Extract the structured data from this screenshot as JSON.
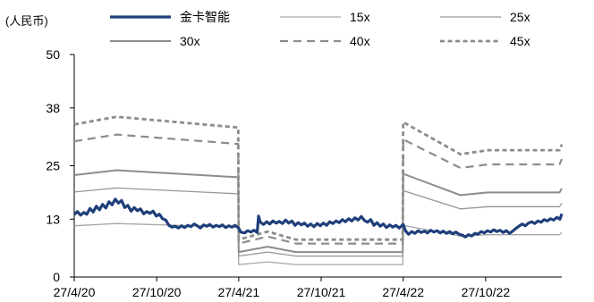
{
  "chart_data": {
    "type": "line",
    "title": "",
    "unit_label": "(人民币)",
    "xlabel": "",
    "ylabel": "",
    "ylim": [
      0,
      50
    ],
    "yticks": [
      0,
      13,
      25,
      38,
      50
    ],
    "x_range": [
      "2020-04-27",
      "2023-04-14"
    ],
    "xticks": [
      {
        "date": "2020-04-27",
        "label": "27/4/20"
      },
      {
        "date": "2020-10-27",
        "label": "27/10/20"
      },
      {
        "date": "2021-04-27",
        "label": "27/4/21"
      },
      {
        "date": "2021-10-27",
        "label": "27/10/21"
      },
      {
        "date": "2022-04-27",
        "label": "27/4/22"
      },
      {
        "date": "2022-10-27",
        "label": "27/10/22"
      }
    ],
    "grid": false,
    "legend": "top",
    "series": [
      {
        "name": "金卡智能",
        "color": "#1f3f7a",
        "style": "thick",
        "points": [
          [
            "2020-04-27",
            14.0
          ],
          [
            "2020-05-04",
            14.7
          ],
          [
            "2020-05-11",
            13.9
          ],
          [
            "2020-05-18",
            14.5
          ],
          [
            "2020-05-25",
            14.1
          ],
          [
            "2020-06-01",
            15.4
          ],
          [
            "2020-06-08",
            14.6
          ],
          [
            "2020-06-15",
            15.9
          ],
          [
            "2020-06-22",
            15.1
          ],
          [
            "2020-06-29",
            16.3
          ],
          [
            "2020-07-06",
            15.5
          ],
          [
            "2020-07-13",
            16.9
          ],
          [
            "2020-07-20",
            16.2
          ],
          [
            "2020-07-27",
            17.5
          ],
          [
            "2020-08-03",
            16.6
          ],
          [
            "2020-08-10",
            17.2
          ],
          [
            "2020-08-17",
            15.6
          ],
          [
            "2020-08-24",
            16.1
          ],
          [
            "2020-08-31",
            14.8
          ],
          [
            "2020-09-07",
            15.6
          ],
          [
            "2020-09-14",
            14.9
          ],
          [
            "2020-09-21",
            15.3
          ],
          [
            "2020-09-28",
            14.2
          ],
          [
            "2020-10-05",
            14.7
          ],
          [
            "2020-10-12",
            14.3
          ],
          [
            "2020-10-19",
            14.8
          ],
          [
            "2020-10-26",
            13.7
          ],
          [
            "2020-11-02",
            14.1
          ],
          [
            "2020-11-09",
            13.1
          ],
          [
            "2020-11-16",
            12.8
          ],
          [
            "2020-11-23",
            11.6
          ],
          [
            "2020-11-30",
            11.2
          ],
          [
            "2020-12-07",
            11.4
          ],
          [
            "2020-12-14",
            11.0
          ],
          [
            "2020-12-21",
            11.5
          ],
          [
            "2020-12-28",
            11.1
          ],
          [
            "2021-01-04",
            11.6
          ],
          [
            "2021-01-11",
            11.3
          ],
          [
            "2021-01-18",
            11.9
          ],
          [
            "2021-01-25",
            11.5
          ],
          [
            "2021-02-01",
            11.0
          ],
          [
            "2021-02-08",
            11.7
          ],
          [
            "2021-02-15",
            11.4
          ],
          [
            "2021-02-22",
            11.8
          ],
          [
            "2021-03-01",
            11.2
          ],
          [
            "2021-03-08",
            11.6
          ],
          [
            "2021-03-15",
            11.3
          ],
          [
            "2021-03-22",
            11.7
          ],
          [
            "2021-03-29",
            11.1
          ],
          [
            "2021-04-05",
            11.5
          ],
          [
            "2021-04-12",
            11.2
          ],
          [
            "2021-04-19",
            11.6
          ],
          [
            "2021-04-27",
            11.0
          ],
          [
            "2021-05-01",
            10.1
          ],
          [
            "2021-05-10",
            9.9
          ],
          [
            "2021-05-17",
            10.4
          ],
          [
            "2021-05-24",
            10.1
          ],
          [
            "2021-05-31",
            10.5
          ],
          [
            "2021-06-07",
            10.0
          ],
          [
            "2021-06-10",
            13.7
          ],
          [
            "2021-06-14",
            12.3
          ],
          [
            "2021-06-21",
            11.8
          ],
          [
            "2021-06-28",
            12.4
          ],
          [
            "2021-07-05",
            11.9
          ],
          [
            "2021-07-12",
            12.6
          ],
          [
            "2021-07-19",
            12.1
          ],
          [
            "2021-07-26",
            12.5
          ],
          [
            "2021-08-02",
            12.0
          ],
          [
            "2021-08-09",
            12.8
          ],
          [
            "2021-08-16",
            12.1
          ],
          [
            "2021-08-23",
            12.6
          ],
          [
            "2021-08-30",
            11.6
          ],
          [
            "2021-09-06",
            12.2
          ],
          [
            "2021-09-13",
            11.7
          ],
          [
            "2021-09-20",
            12.1
          ],
          [
            "2021-09-27",
            11.4
          ],
          [
            "2021-10-04",
            11.9
          ],
          [
            "2021-10-11",
            11.3
          ],
          [
            "2021-10-18",
            12.0
          ],
          [
            "2021-10-25",
            11.5
          ],
          [
            "2021-11-01",
            12.1
          ],
          [
            "2021-11-08",
            11.6
          ],
          [
            "2021-11-15",
            12.4
          ],
          [
            "2021-11-22",
            12.0
          ],
          [
            "2021-11-29",
            12.6
          ],
          [
            "2021-12-06",
            12.2
          ],
          [
            "2021-12-13",
            12.9
          ],
          [
            "2021-12-20",
            12.4
          ],
          [
            "2021-12-27",
            13.1
          ],
          [
            "2022-01-03",
            12.6
          ],
          [
            "2022-01-10",
            13.3
          ],
          [
            "2022-01-17",
            12.8
          ],
          [
            "2022-01-24",
            13.6
          ],
          [
            "2022-01-31",
            12.7
          ],
          [
            "2022-02-07",
            12.3
          ],
          [
            "2022-02-14",
            12.9
          ],
          [
            "2022-02-21",
            11.6
          ],
          [
            "2022-02-28",
            12.2
          ],
          [
            "2022-03-07",
            11.4
          ],
          [
            "2022-03-14",
            11.9
          ],
          [
            "2022-03-21",
            11.1
          ],
          [
            "2022-03-28",
            11.7
          ],
          [
            "2022-04-04",
            11.2
          ],
          [
            "2022-04-11",
            11.6
          ],
          [
            "2022-04-18",
            11.0
          ],
          [
            "2022-04-27",
            11.8
          ],
          [
            "2022-05-02",
            10.4
          ],
          [
            "2022-05-09",
            9.6
          ],
          [
            "2022-05-16",
            10.2
          ],
          [
            "2022-05-23",
            9.8
          ],
          [
            "2022-05-30",
            10.4
          ],
          [
            "2022-06-06",
            10.0
          ],
          [
            "2022-06-13",
            10.3
          ],
          [
            "2022-06-20",
            9.9
          ],
          [
            "2022-06-27",
            10.5
          ],
          [
            "2022-07-04",
            10.1
          ],
          [
            "2022-07-11",
            10.4
          ],
          [
            "2022-07-18",
            9.9
          ],
          [
            "2022-07-25",
            10.3
          ],
          [
            "2022-08-01",
            9.8
          ],
          [
            "2022-08-08",
            10.2
          ],
          [
            "2022-08-15",
            9.7
          ],
          [
            "2022-08-22",
            10.1
          ],
          [
            "2022-08-29",
            9.6
          ],
          [
            "2022-09-05",
            9.4
          ],
          [
            "2022-09-12",
            9.0
          ],
          [
            "2022-09-19",
            9.5
          ],
          [
            "2022-09-26",
            9.2
          ],
          [
            "2022-10-03",
            9.8
          ],
          [
            "2022-10-10",
            9.6
          ],
          [
            "2022-10-17",
            10.2
          ],
          [
            "2022-10-24",
            9.9
          ],
          [
            "2022-10-31",
            10.4
          ],
          [
            "2022-11-07",
            10.1
          ],
          [
            "2022-11-14",
            10.6
          ],
          [
            "2022-11-21",
            10.2
          ],
          [
            "2022-11-28",
            10.5
          ],
          [
            "2022-12-05",
            10.0
          ],
          [
            "2022-12-12",
            10.4
          ],
          [
            "2022-12-19",
            9.8
          ],
          [
            "2022-12-26",
            10.3
          ],
          [
            "2023-01-02",
            10.9
          ],
          [
            "2023-01-09",
            11.4
          ],
          [
            "2023-01-16",
            11.9
          ],
          [
            "2023-01-23",
            11.5
          ],
          [
            "2023-01-30",
            12.1
          ],
          [
            "2023-02-06",
            12.4
          ],
          [
            "2023-02-13",
            12.0
          ],
          [
            "2023-02-20",
            12.6
          ],
          [
            "2023-02-27",
            12.3
          ],
          [
            "2023-03-06",
            12.9
          ],
          [
            "2023-03-13",
            12.6
          ],
          [
            "2023-03-20",
            13.1
          ],
          [
            "2023-03-27",
            12.8
          ],
          [
            "2023-04-03",
            13.4
          ],
          [
            "2023-04-10",
            13.0
          ],
          [
            "2023-04-14",
            14.2
          ]
        ]
      },
      {
        "name": "15x",
        "color": "#a6a6a6",
        "style": "solid-thin",
        "points": [
          [
            "2020-04-27",
            11.5
          ],
          [
            "2020-07-30",
            12.0
          ],
          [
            "2021-04-26",
            11.2
          ],
          [
            "2021-04-27",
            2.8
          ],
          [
            "2021-06-30",
            3.4
          ],
          [
            "2021-09-01",
            2.8
          ],
          [
            "2022-04-26",
            2.8
          ],
          [
            "2022-04-27",
            11.6
          ],
          [
            "2022-09-01",
            9.2
          ],
          [
            "2022-11-01",
            9.5
          ],
          [
            "2023-04-09",
            9.5
          ],
          [
            "2023-04-14",
            10.0
          ]
        ]
      },
      {
        "name": "25x",
        "color": "#969696",
        "style": "solid-thin",
        "points": [
          [
            "2020-04-27",
            19.1
          ],
          [
            "2020-07-30",
            20.0
          ],
          [
            "2021-04-26",
            18.7
          ],
          [
            "2021-04-27",
            4.7
          ],
          [
            "2021-06-30",
            5.6
          ],
          [
            "2021-09-01",
            4.7
          ],
          [
            "2022-04-26",
            4.7
          ],
          [
            "2022-04-27",
            19.4
          ],
          [
            "2022-09-01",
            15.3
          ],
          [
            "2022-11-01",
            15.8
          ],
          [
            "2023-04-09",
            15.8
          ],
          [
            "2023-04-14",
            16.6
          ]
        ]
      },
      {
        "name": "30x",
        "color": "#8c8c8c",
        "style": "solid-mid",
        "points": [
          [
            "2020-04-27",
            22.9
          ],
          [
            "2020-07-30",
            24.0
          ],
          [
            "2021-04-26",
            22.4
          ],
          [
            "2021-04-27",
            5.6
          ],
          [
            "2021-06-30",
            6.8
          ],
          [
            "2021-09-01",
            5.6
          ],
          [
            "2022-04-26",
            5.6
          ],
          [
            "2022-04-27",
            23.2
          ],
          [
            "2022-09-01",
            18.4
          ],
          [
            "2022-11-01",
            19.0
          ],
          [
            "2023-04-09",
            19.0
          ],
          [
            "2023-04-14",
            19.9
          ]
        ]
      },
      {
        "name": "40x",
        "color": "#8c8c8c",
        "style": "dashed",
        "points": [
          [
            "2020-04-27",
            30.5
          ],
          [
            "2020-07-30",
            32.0
          ],
          [
            "2021-04-26",
            29.9
          ],
          [
            "2021-04-27",
            7.5
          ],
          [
            "2021-06-30",
            9.1
          ],
          [
            "2021-09-01",
            7.5
          ],
          [
            "2022-04-26",
            7.5
          ],
          [
            "2022-04-27",
            30.9
          ],
          [
            "2022-09-01",
            24.5
          ],
          [
            "2022-11-01",
            25.3
          ],
          [
            "2023-04-09",
            25.3
          ],
          [
            "2023-04-14",
            26.5
          ]
        ]
      },
      {
        "name": "45x",
        "color": "#8c8c8c",
        "style": "dotted",
        "points": [
          [
            "2020-04-27",
            34.3
          ],
          [
            "2020-07-30",
            36.0
          ],
          [
            "2021-04-26",
            33.6
          ],
          [
            "2021-04-27",
            8.4
          ],
          [
            "2021-06-30",
            10.2
          ],
          [
            "2021-09-01",
            8.4
          ],
          [
            "2022-04-26",
            8.4
          ],
          [
            "2022-04-27",
            34.8
          ],
          [
            "2022-09-01",
            27.6
          ],
          [
            "2022-11-01",
            28.5
          ],
          [
            "2023-04-09",
            28.5
          ],
          [
            "2023-04-14",
            29.8
          ]
        ]
      }
    ]
  }
}
